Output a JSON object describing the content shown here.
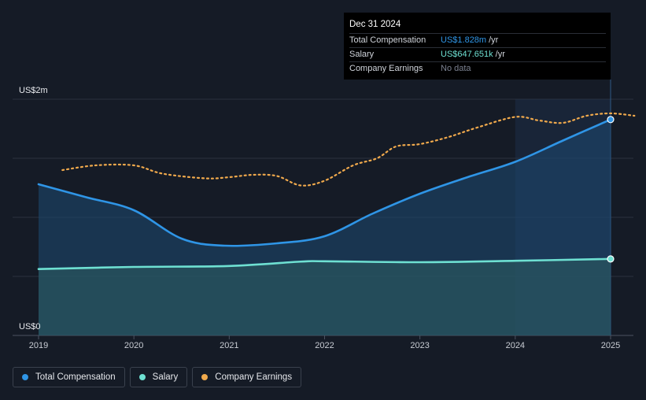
{
  "chart_data": {
    "type": "line",
    "y_labels": [
      "US$2m",
      "US$0"
    ],
    "ylim": [
      0,
      2000000
    ],
    "x_ticks": [
      "2019",
      "2020",
      "2021",
      "2022",
      "2023",
      "2024",
      "2025"
    ],
    "xlim": [
      2019.0,
      2025.25
    ],
    "grid": true,
    "legend_position": "bottom-left",
    "series": [
      {
        "name": "Total Compensation",
        "color": "#2f95e6",
        "x": [
          2019.0,
          2019.5,
          2020.0,
          2020.5,
          2020.95,
          2021.5,
          2022.0,
          2022.5,
          2023.0,
          2023.5,
          2024.0,
          2024.5,
          2025.0
        ],
        "y": [
          1280000,
          1170000,
          1060000,
          820000,
          760000,
          780000,
          840000,
          1030000,
          1200000,
          1340000,
          1470000,
          1650000,
          1828000
        ]
      },
      {
        "name": "Salary",
        "color": "#6ee0d2",
        "x": [
          2019.0,
          2020.0,
          2021.0,
          2021.75,
          2022.0,
          2023.0,
          2024.0,
          2025.0
        ],
        "y": [
          562000,
          580000,
          588000,
          625000,
          628000,
          620000,
          632000,
          647651
        ]
      },
      {
        "name": "Company Earnings",
        "color": "#f0a94c",
        "dashed": true,
        "x": [
          2019.25,
          2019.6,
          2020.0,
          2020.3,
          2020.75,
          2021.0,
          2021.25,
          2021.5,
          2021.75,
          2022.0,
          2022.3,
          2022.55,
          2022.75,
          2023.0,
          2023.3,
          2023.6,
          2024.0,
          2024.25,
          2024.5,
          2024.75,
          2025.0,
          2025.25
        ],
        "y": [
          1400000,
          1440000,
          1440000,
          1370000,
          1330000,
          1340000,
          1360000,
          1350000,
          1270000,
          1310000,
          1440000,
          1500000,
          1600000,
          1620000,
          1680000,
          1760000,
          1850000,
          1820000,
          1800000,
          1860000,
          1880000,
          1860000
        ]
      }
    ]
  },
  "tooltip": {
    "date": "Dec 31 2024",
    "rows": [
      {
        "label": "Total Compensation",
        "value": "US$1.828m",
        "unit": "/yr",
        "color": "#2f95e6"
      },
      {
        "label": "Salary",
        "value": "US$647.651k",
        "unit": "/yr",
        "color": "#6ee0d2"
      },
      {
        "label": "Company Earnings",
        "value": "No data",
        "unit": "",
        "color": "#7b8190"
      }
    ]
  },
  "legend": [
    {
      "label": "Total Compensation",
      "color": "#2f95e6"
    },
    {
      "label": "Salary",
      "color": "#6ee0d2"
    },
    {
      "label": "Company Earnings",
      "color": "#f0a94c"
    }
  ]
}
